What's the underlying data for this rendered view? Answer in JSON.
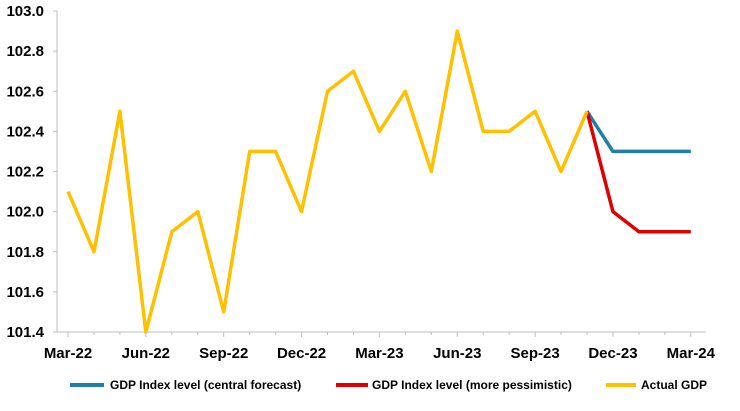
{
  "chart_data": {
    "type": "line",
    "x": [
      "Mar-22",
      "Apr-22",
      "May-22",
      "Jun-22",
      "Jul-22",
      "Aug-22",
      "Sep-22",
      "Oct-22",
      "Nov-22",
      "Dec-22",
      "Jan-23",
      "Feb-23",
      "Mar-23",
      "Apr-23",
      "May-23",
      "Jun-23",
      "Jul-23",
      "Aug-23",
      "Sep-23",
      "Oct-23",
      "Nov-23",
      "Dec-23",
      "Jan-24",
      "Feb-24",
      "Mar-24"
    ],
    "x_tick_labels": [
      "Mar-22",
      "Jun-22",
      "Sep-22",
      "Dec-22",
      "Mar-23",
      "Jun-23",
      "Sep-23",
      "Dec-23",
      "Mar-24"
    ],
    "y_tick_labels": [
      "101.4",
      "101.6",
      "101.8",
      "102.0",
      "102.2",
      "102.4",
      "102.6",
      "102.8",
      "103.0"
    ],
    "ylim": [
      101.4,
      103.0
    ],
    "grid": false,
    "legend_position": "bottom",
    "series": [
      {
        "name": "GDP Index level (central forecast)",
        "color": "#1f7fa8",
        "values": [
          null,
          null,
          null,
          null,
          null,
          null,
          null,
          null,
          null,
          null,
          null,
          null,
          null,
          null,
          null,
          null,
          null,
          null,
          null,
          null,
          102.5,
          102.3,
          102.3,
          102.3,
          102.3
        ]
      },
      {
        "name": "GDP Index level (more pessimistic)",
        "color": "#e00000",
        "values": [
          null,
          null,
          null,
          null,
          null,
          null,
          null,
          null,
          null,
          null,
          null,
          null,
          null,
          null,
          null,
          null,
          null,
          null,
          null,
          null,
          102.5,
          102.0,
          101.9,
          101.9,
          101.9
        ]
      },
      {
        "name": "Actual GDP",
        "color": "#ffc000",
        "values": [
          102.1,
          101.8,
          102.5,
          101.4,
          101.9,
          102.0,
          101.5,
          102.3,
          102.3,
          102.0,
          102.6,
          102.7,
          102.4,
          102.6,
          102.2,
          102.9,
          102.4,
          102.4,
          102.5,
          102.2,
          102.5,
          null,
          null,
          null,
          null
        ]
      }
    ]
  }
}
